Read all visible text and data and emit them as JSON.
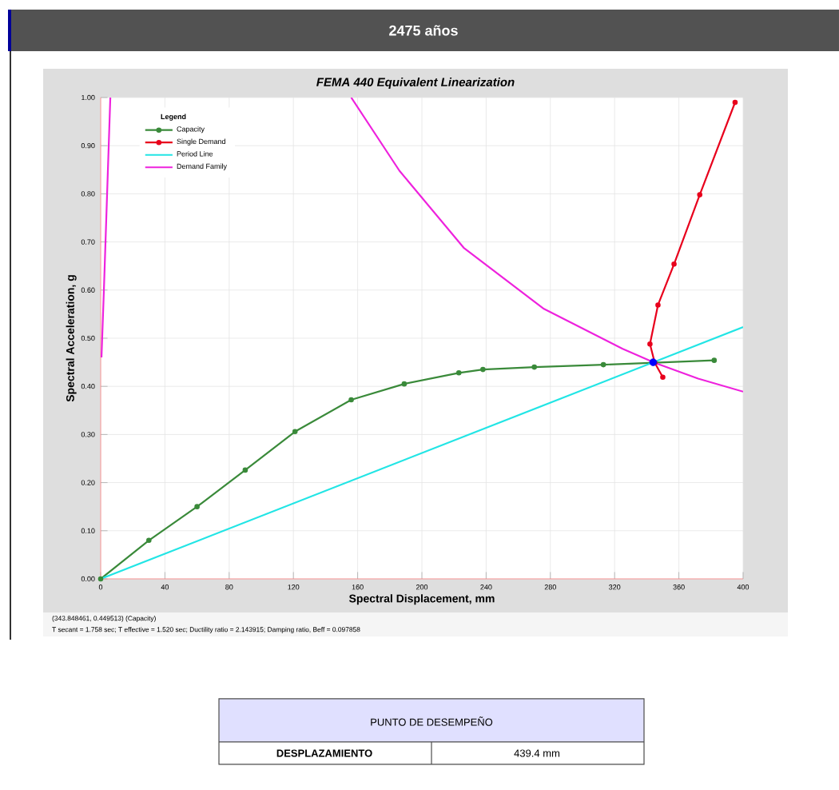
{
  "chart_data": {
    "type": "line",
    "title": "2475 años",
    "subtitle": "FEMA 440 Equivalent Linearization",
    "xlabel": "Spectral Displacement, mm",
    "ylabel": "Spectral Acceleration, g",
    "legend_title": "Legend",
    "xlim": [
      0,
      400
    ],
    "xticks": [
      0,
      40,
      80,
      120,
      160,
      200,
      240,
      280,
      320,
      360,
      400
    ],
    "ylim": [
      0,
      1.0
    ],
    "yticks": [
      {
        "value": 0,
        "label": "0.00"
      },
      {
        "value": 0.1,
        "label": "0.10"
      },
      {
        "value": 0.2,
        "label": "0.20"
      },
      {
        "value": 0.3,
        "label": "0.30"
      },
      {
        "value": 0.4,
        "label": "0.40"
      },
      {
        "value": 0.5,
        "label": "0.50"
      },
      {
        "value": 0.6,
        "label": "0.60"
      },
      {
        "value": 0.7,
        "label": "0.70"
      },
      {
        "value": 0.8,
        "label": "0.80"
      },
      {
        "value": 0.9,
        "label": "0.90"
      },
      {
        "value": 1.0,
        "label": "1.00"
      }
    ],
    "grid": true,
    "legend": "top left",
    "line_style": "solid",
    "series": [
      {
        "name": "Capacity",
        "color": "#3a8a3a",
        "marker": "circle",
        "x": [
          0,
          30,
          60,
          90,
          121,
          156,
          189,
          223,
          238,
          270,
          313,
          345,
          382
        ],
        "values": [
          0,
          0.08,
          0.15,
          0.226,
          0.306,
          0.372,
          0.405,
          0.428,
          0.435,
          0.44,
          0.445,
          0.449,
          0.454
        ]
      },
      {
        "name": "Single Demand",
        "color": "#e8001c",
        "marker": "circle",
        "x": [
          395,
          373,
          357,
          347,
          342,
          345,
          350
        ],
        "values": [
          0.99,
          0.798,
          0.654,
          0.569,
          0.488,
          0.449,
          0.419
        ]
      },
      {
        "name": "Period Line",
        "color": "#22e5e5",
        "marker": "none",
        "x": [
          0,
          400
        ],
        "values": [
          0,
          0.523
        ]
      },
      {
        "name": "Demand Family",
        "color": "#ee22dd",
        "marker": "none",
        "x": [
          6,
          4,
          2,
          0.5,
          null,
          156,
          186,
          226,
          276,
          325,
          345,
          372,
          400
        ],
        "values": [
          1.0,
          0.8,
          0.6,
          0.46,
          null,
          1.0,
          0.848,
          0.688,
          0.561,
          0.478,
          0.449,
          0.416,
          0.389
        ]
      },
      {
        "type": "scatter",
        "color": "#0000ff",
        "marker": "circle",
        "x": [
          344
        ],
        "values": [
          0.45
        ]
      }
    ],
    "annotations": [
      "(343.848461, 0.449513)  (Capacity)",
      "T secant = 1.758 sec; T effective = 1.520 sec; Ductility ratio = 2.143915; Damping ratio, Beff = 0.097858",
      "PUNTO DE DESEMPEÑO",
      "DESPLAZAMIENTO",
      "439.4  mm"
    ]
  }
}
